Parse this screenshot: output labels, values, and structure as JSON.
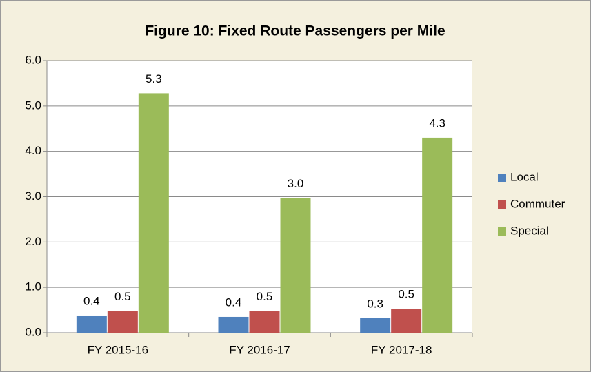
{
  "chart_data": {
    "type": "bar",
    "title": "Figure 10: Fixed Route Passengers per Mile",
    "categories": [
      "FY 2015-16",
      "FY 2016-17",
      "FY 2017-18"
    ],
    "series": [
      {
        "name": "Local",
        "color": "#4f81bd",
        "values": [
          0.38,
          0.35,
          0.32
        ],
        "value_labels": [
          "0.4",
          "0.4",
          "0.3"
        ]
      },
      {
        "name": "Commuter",
        "color": "#c0504d",
        "values": [
          0.48,
          0.48,
          0.53
        ],
        "value_labels": [
          "0.5",
          "0.5",
          "0.5"
        ]
      },
      {
        "name": "Special",
        "color": "#9bbb59",
        "values": [
          5.28,
          2.97,
          4.3
        ],
        "value_labels": [
          "5.3",
          "3.0",
          "4.3"
        ]
      }
    ],
    "ylim": [
      0,
      6
    ],
    "yticks": [
      {
        "value": 0,
        "label": "0.0"
      },
      {
        "value": 1,
        "label": "1.0"
      },
      {
        "value": 2,
        "label": "2.0"
      },
      {
        "value": 3,
        "label": "3.0"
      },
      {
        "value": 4,
        "label": "4.0"
      },
      {
        "value": 5,
        "label": "5.0"
      },
      {
        "value": 6,
        "label": "6.0"
      }
    ],
    "grid": true,
    "legend": "right"
  }
}
